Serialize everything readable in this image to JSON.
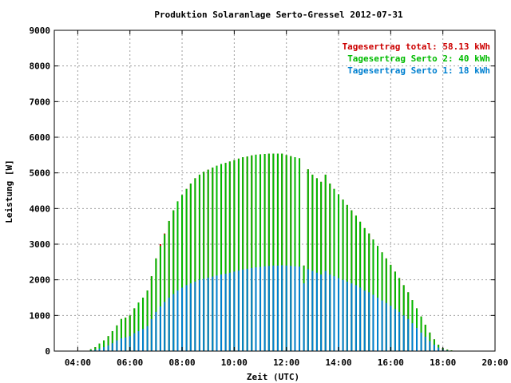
{
  "chart_data": {
    "type": "bar",
    "stacked": true,
    "title": "Produktion Solaranlage Serto-Gressel 2012-07-31",
    "xlabel": "Zeit (UTC)",
    "ylabel": "Leistung [W]",
    "xlim": [
      3.1,
      20.0
    ],
    "ylim": [
      0,
      9000
    ],
    "x_ticks": [
      "04:00",
      "06:00",
      "08:00",
      "10:00",
      "12:00",
      "14:00",
      "16:00",
      "18:00",
      "20:00"
    ],
    "x_tick_hours": [
      4,
      6,
      8,
      10,
      12,
      14,
      16,
      18,
      20
    ],
    "y_ticks": [
      0,
      1000,
      2000,
      3000,
      4000,
      5000,
      6000,
      7000,
      8000,
      9000
    ],
    "grid": true,
    "legend_position": "top-right",
    "legend": [
      {
        "label": "Tagesertrag total: 58.13 kWh",
        "color": "#cc0000"
      },
      {
        "label": "Tagesertrag Serto 2: 40 kWh",
        "color": "#00bb00"
      },
      {
        "label": "Tagesertrag Serto 1: 18 kWh",
        "color": "#0080d0"
      }
    ],
    "series_note_colors": {
      "serto1": "#0080d0",
      "serto2": "#00bb00",
      "total": "#cc0000"
    },
    "x_hours": [
      4.5,
      4.67,
      4.83,
      5.0,
      5.17,
      5.33,
      5.5,
      5.67,
      5.83,
      6.0,
      6.17,
      6.33,
      6.5,
      6.67,
      6.83,
      7.0,
      7.17,
      7.33,
      7.5,
      7.67,
      7.83,
      8.0,
      8.17,
      8.33,
      8.5,
      8.67,
      8.83,
      9.0,
      9.17,
      9.33,
      9.5,
      9.67,
      9.83,
      10.0,
      10.17,
      10.33,
      10.5,
      10.67,
      10.83,
      11.0,
      11.17,
      11.33,
      11.5,
      11.67,
      11.83,
      12.0,
      12.17,
      12.33,
      12.5,
      12.67,
      12.83,
      13.0,
      13.17,
      13.33,
      13.5,
      13.67,
      13.83,
      14.0,
      14.17,
      14.33,
      14.5,
      14.67,
      14.83,
      15.0,
      15.17,
      15.33,
      15.5,
      15.67,
      15.83,
      16.0,
      16.17,
      16.33,
      16.5,
      16.67,
      16.83,
      17.0,
      17.17,
      17.33,
      17.5,
      17.67,
      17.83,
      18.0,
      18.17,
      18.33,
      18.5
    ],
    "serto1": [
      20,
      40,
      70,
      110,
      160,
      220,
      300,
      360,
      380,
      420,
      500,
      560,
      620,
      700,
      900,
      1100,
      1250,
      1380,
      1500,
      1600,
      1700,
      1780,
      1850,
      1900,
      1950,
      2000,
      2030,
      2060,
      2090,
      2120,
      2150,
      2170,
      2200,
      2230,
      2260,
      2290,
      2310,
      2330,
      2350,
      2360,
      2380,
      2390,
      2400,
      2400,
      2410,
      2400,
      2390,
      2380,
      2370,
      1900,
      2300,
      2250,
      2200,
      2150,
      2250,
      2150,
      2100,
      2050,
      2000,
      1950,
      1900,
      1850,
      1780,
      1700,
      1650,
      1580,
      1500,
      1420,
      1350,
      1270,
      1180,
      1100,
      1000,
      900,
      780,
      650,
      520,
      400,
      280,
      180,
      100,
      50,
      20,
      10,
      5
    ],
    "serto2": [
      30,
      70,
      140,
      190,
      260,
      340,
      420,
      540,
      560,
      580,
      700,
      800,
      880,
      1000,
      1200,
      1500,
      1700,
      1900,
      2150,
      2350,
      2500,
      2600,
      2700,
      2800,
      2900,
      2950,
      3000,
      3030,
      3060,
      3080,
      3100,
      3110,
      3120,
      3130,
      3140,
      3150,
      3150,
      3160,
      3160,
      3160,
      3150,
      3150,
      3140,
      3140,
      3130,
      3100,
      3080,
      3060,
      3040,
      500,
      2800,
      2700,
      2650,
      2600,
      2700,
      2550,
      2450,
      2350,
      2250,
      2150,
      2050,
      1950,
      1850,
      1750,
      1650,
      1550,
      1450,
      1350,
      1250,
      1150,
      1050,
      950,
      850,
      750,
      650,
      550,
      450,
      340,
      240,
      150,
      80,
      40,
      20,
      10,
      5
    ],
    "total": [
      50,
      110,
      210,
      300,
      420,
      560,
      720,
      900,
      940,
      1000,
      1200,
      1360,
      1500,
      1700,
      2100,
      2600,
      3000,
      3300,
      3650,
      3950,
      4200,
      4380,
      4550,
      4700,
      4850,
      4950,
      5030,
      5090,
      5150,
      5200,
      5250,
      5280,
      5320,
      5360,
      5400,
      5440,
      5460,
      5490,
      5510,
      5520,
      5530,
      5540,
      5540,
      5540,
      5540,
      5500,
      5470,
      5440,
      5410,
      2400,
      5100,
      4950,
      4850,
      4750,
      4950,
      4700,
      4550,
      4400,
      4250,
      4100,
      3950,
      3800,
      3630,
      3450,
      3300,
      3130,
      2950,
      2770,
      2600,
      2420,
      2230,
      2050,
      1850,
      1650,
      1430,
      1200,
      970,
      740,
      520,
      330,
      180,
      90,
      40,
      20,
      10
    ]
  }
}
